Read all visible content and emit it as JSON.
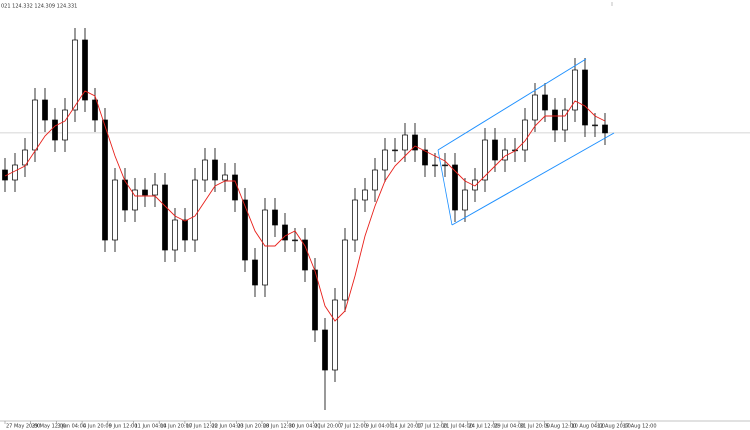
{
  "chart_data": {
    "type": "candlestick",
    "header": "021 124.332 124.309 124.331",
    "ylim": [
      121.36,
      125.66
    ],
    "xlim": [
      -0.5,
      74.5
    ],
    "up_color": "#000000",
    "down_color": "#000000",
    "ma_color": "#e8201b",
    "last_price_color": "#c8c8c8",
    "open": [
      123.96,
      123.86,
      124.01,
      124.16,
      124.66,
      124.46,
      124.26,
      124.56,
      125.26,
      124.66,
      124.46,
      123.26,
      123.86,
      123.56,
      123.76,
      123.71,
      123.81,
      123.16,
      123.46,
      123.26,
      123.86,
      124.06,
      123.86,
      123.91,
      123.66,
      123.06,
      122.81,
      123.56,
      123.41,
      123.26,
      123.26,
      122.96,
      122.36,
      121.96,
      122.66,
      123.26,
      123.66,
      123.76,
      123.96,
      124.16,
      124.16,
      124.31,
      124.16,
      124.01,
      124.01,
      124.01,
      123.56,
      123.76,
      123.86,
      124.26,
      124.06,
      124.16,
      124.16,
      124.46,
      124.71,
      124.56,
      124.36,
      124.56,
      124.96,
      124.41,
      124.41
    ],
    "high": [
      124.08,
      124.13,
      124.28,
      124.78,
      124.78,
      124.58,
      124.68,
      125.38,
      125.38,
      124.78,
      124.58,
      123.98,
      123.98,
      123.88,
      123.88,
      123.93,
      123.93,
      123.58,
      123.58,
      123.98,
      124.18,
      124.18,
      124.03,
      124.03,
      123.78,
      123.18,
      123.68,
      123.68,
      123.53,
      123.38,
      123.38,
      123.08,
      122.48,
      122.78,
      123.38,
      123.78,
      123.88,
      124.08,
      124.28,
      124.28,
      124.43,
      124.43,
      124.28,
      124.13,
      124.13,
      124.13,
      123.88,
      123.98,
      124.38,
      124.38,
      124.28,
      124.28,
      124.58,
      124.83,
      124.83,
      124.68,
      124.68,
      125.08,
      125.08,
      124.53,
      124.53
    ],
    "low": [
      123.74,
      123.74,
      123.89,
      124.04,
      124.34,
      124.14,
      124.14,
      124.44,
      124.54,
      124.34,
      123.14,
      123.14,
      123.44,
      123.44,
      123.59,
      123.59,
      123.04,
      123.04,
      123.14,
      123.14,
      123.74,
      123.74,
      123.74,
      123.54,
      122.94,
      122.69,
      122.69,
      123.29,
      123.14,
      123.14,
      122.84,
      122.24,
      121.56,
      121.84,
      122.54,
      123.14,
      123.54,
      123.64,
      123.84,
      124.04,
      124.04,
      124.04,
      123.89,
      123.89,
      123.89,
      123.44,
      123.44,
      123.64,
      123.74,
      123.94,
      123.94,
      124.04,
      124.04,
      124.34,
      124.44,
      124.24,
      124.24,
      124.44,
      124.29,
      124.29,
      124.21
    ],
    "close": [
      123.86,
      124.01,
      124.16,
      124.66,
      124.46,
      124.26,
      124.56,
      125.26,
      124.66,
      124.46,
      123.26,
      123.86,
      123.56,
      123.76,
      123.71,
      123.81,
      123.16,
      123.46,
      123.26,
      123.86,
      124.06,
      123.86,
      123.91,
      123.66,
      123.06,
      122.81,
      123.56,
      123.41,
      123.26,
      123.26,
      122.96,
      122.36,
      121.96,
      122.66,
      123.26,
      123.66,
      123.76,
      123.96,
      124.16,
      124.16,
      124.31,
      124.16,
      124.01,
      124.01,
      124.01,
      123.56,
      123.76,
      123.86,
      124.26,
      124.06,
      124.16,
      124.16,
      124.46,
      124.71,
      124.56,
      124.36,
      124.56,
      124.96,
      124.41,
      124.41,
      124.331
    ],
    "ma": [
      123.9,
      123.95,
      124.0,
      124.15,
      124.3,
      124.4,
      124.45,
      124.6,
      124.75,
      124.7,
      124.4,
      124.1,
      123.85,
      123.7,
      123.7,
      123.7,
      123.6,
      123.5,
      123.45,
      123.5,
      123.65,
      123.8,
      123.85,
      123.85,
      123.6,
      123.35,
      123.2,
      123.2,
      123.3,
      123.35,
      123.2,
      122.95,
      122.6,
      122.45,
      122.55,
      122.9,
      123.3,
      123.6,
      123.85,
      124.0,
      124.1,
      124.2,
      124.15,
      124.1,
      124.05,
      123.95,
      123.85,
      123.8,
      123.9,
      124.0,
      124.1,
      124.15,
      124.25,
      124.4,
      124.5,
      124.5,
      124.5,
      124.65,
      124.6,
      124.5,
      124.45
    ],
    "xticks": [
      {
        "value": 0,
        "label": "27 May 20:00"
      },
      {
        "value": 2.57,
        "label": "29 May 12:00"
      },
      {
        "value": 5.14,
        "label": "3 Jun 04:00"
      },
      {
        "value": 7.71,
        "label": "4 Jun 20:00"
      },
      {
        "value": 10.28,
        "label": "9 Jun 12:00"
      },
      {
        "value": 12.85,
        "label": "11 Jun 04:00"
      },
      {
        "value": 15.42,
        "label": "14 Jun 20:00"
      },
      {
        "value": 17.99,
        "label": "17 Jun 12:00"
      },
      {
        "value": 20.56,
        "label": "22 Jun 04:00"
      },
      {
        "value": 23.13,
        "label": "23 Jun 20:00"
      },
      {
        "value": 25.7,
        "label": "28 Jun 12:00"
      },
      {
        "value": 28.27,
        "label": "30 Jun 04:00"
      },
      {
        "value": 30.84,
        "label": "2 Jul 20:00"
      },
      {
        "value": 33.41,
        "label": "7 Jul 12:00"
      },
      {
        "value": 35.98,
        "label": "9 Jul 04:00"
      },
      {
        "value": 38.55,
        "label": "14 Jul 20:00"
      },
      {
        "value": 41.12,
        "label": "17 Jul 12:00"
      },
      {
        "value": 43.69,
        "label": "21 Jul 04:00"
      },
      {
        "value": 46.26,
        "label": "24 Jul 12:00"
      },
      {
        "value": 48.83,
        "label": "29 Jul 04:00"
      },
      {
        "value": 51.4,
        "label": "31 Jul 20:00"
      },
      {
        "value": 53.97,
        "label": "5 Aug 12:00"
      },
      {
        "value": 56.54,
        "label": "10 Aug 04:00"
      },
      {
        "value": 59.11,
        "label": "12 Aug 20:00"
      },
      {
        "value": 61.68,
        "label": "17 Aug 12:00"
      }
    ]
  }
}
